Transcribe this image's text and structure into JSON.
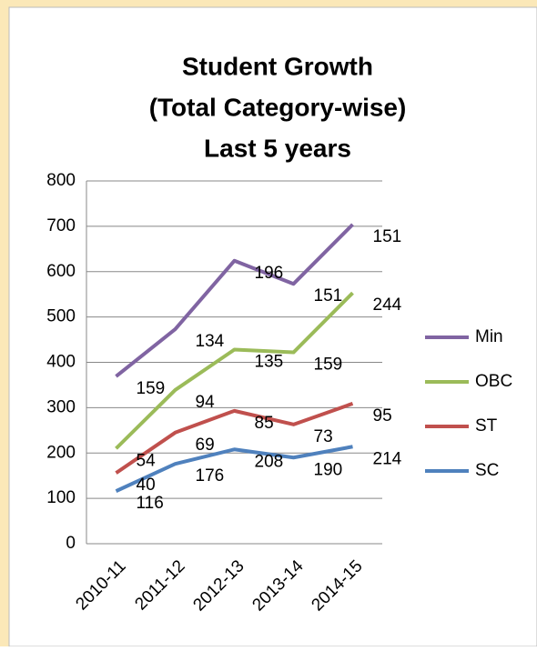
{
  "chart_data": {
    "type": "line",
    "stacked": true,
    "title": [
      "Student Growth",
      "(Total Category-wise)",
      "Last 5 years"
    ],
    "categories": [
      "2010-11",
      "2011-12",
      "2012-13",
      "2013-14",
      "2014-15"
    ],
    "series": [
      {
        "name": "SC",
        "color": "#4f81bd",
        "values": [
          116,
          176,
          208,
          190,
          214
        ]
      },
      {
        "name": "ST",
        "color": "#c0504d",
        "values": [
          40,
          69,
          85,
          73,
          95
        ]
      },
      {
        "name": "OBC",
        "color": "#9bbb59",
        "values": [
          54,
          94,
          135,
          159,
          244
        ]
      },
      {
        "name": "Min",
        "color": "#8064a2",
        "values": [
          159,
          134,
          196,
          151,
          151
        ]
      }
    ],
    "ylim": [
      0,
      800
    ],
    "yticks": [
      0,
      100,
      200,
      300,
      400,
      500,
      600,
      700,
      800
    ],
    "grid": true,
    "legend": "right"
  }
}
